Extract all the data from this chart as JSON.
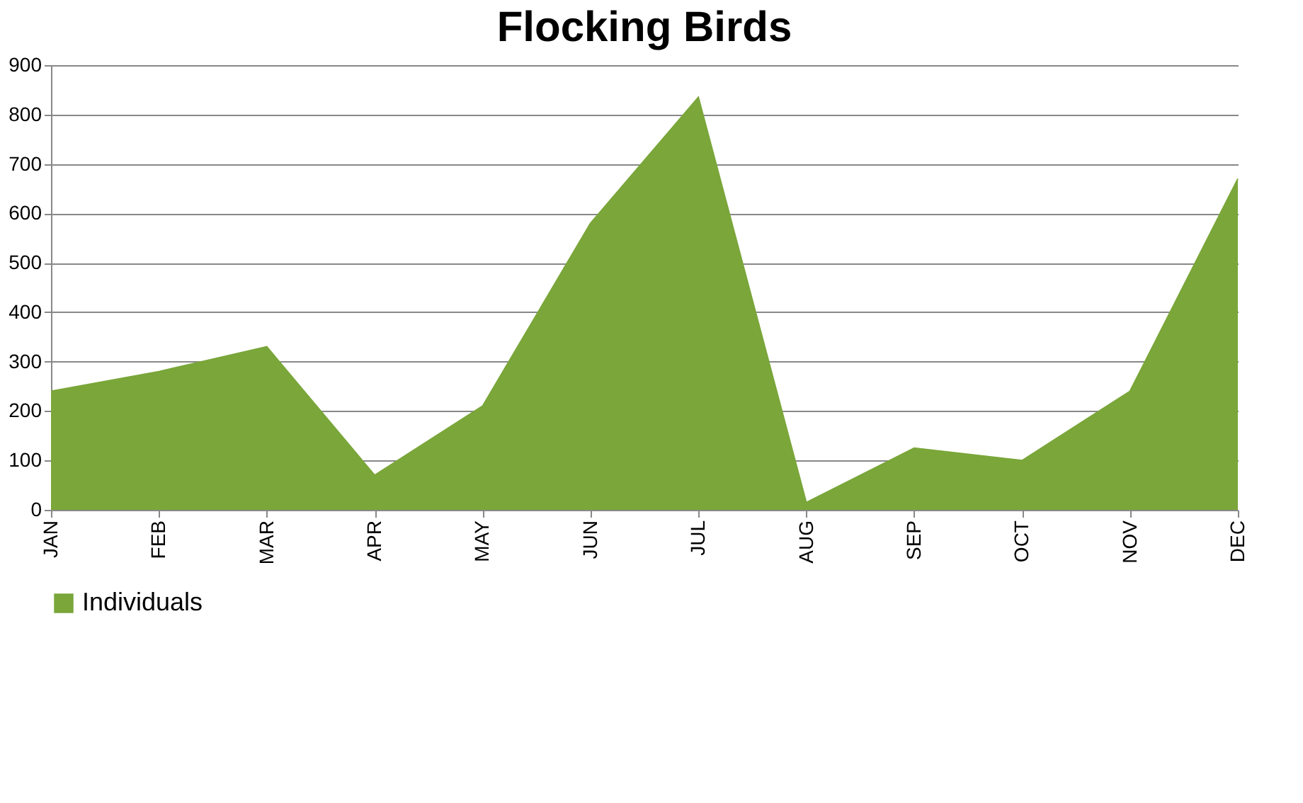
{
  "chart_data": {
    "type": "area",
    "title": "Flocking Birds",
    "categories": [
      "JAN",
      "FEB",
      "MAR",
      "APR",
      "MAY",
      "JUN",
      "JUL",
      "AUG",
      "SEP",
      "OCT",
      "NOV",
      "DEC"
    ],
    "series": [
      {
        "name": "Individuals",
        "color": "#7aa63a",
        "values": [
          240,
          280,
          330,
          70,
          210,
          580,
          835,
          15,
          125,
          100,
          240,
          670
        ]
      }
    ],
    "ylim": [
      0,
      900
    ],
    "yticks": [
      0,
      100,
      200,
      300,
      400,
      500,
      600,
      700,
      800,
      900
    ],
    "grid": "y",
    "legend": "bottom"
  }
}
